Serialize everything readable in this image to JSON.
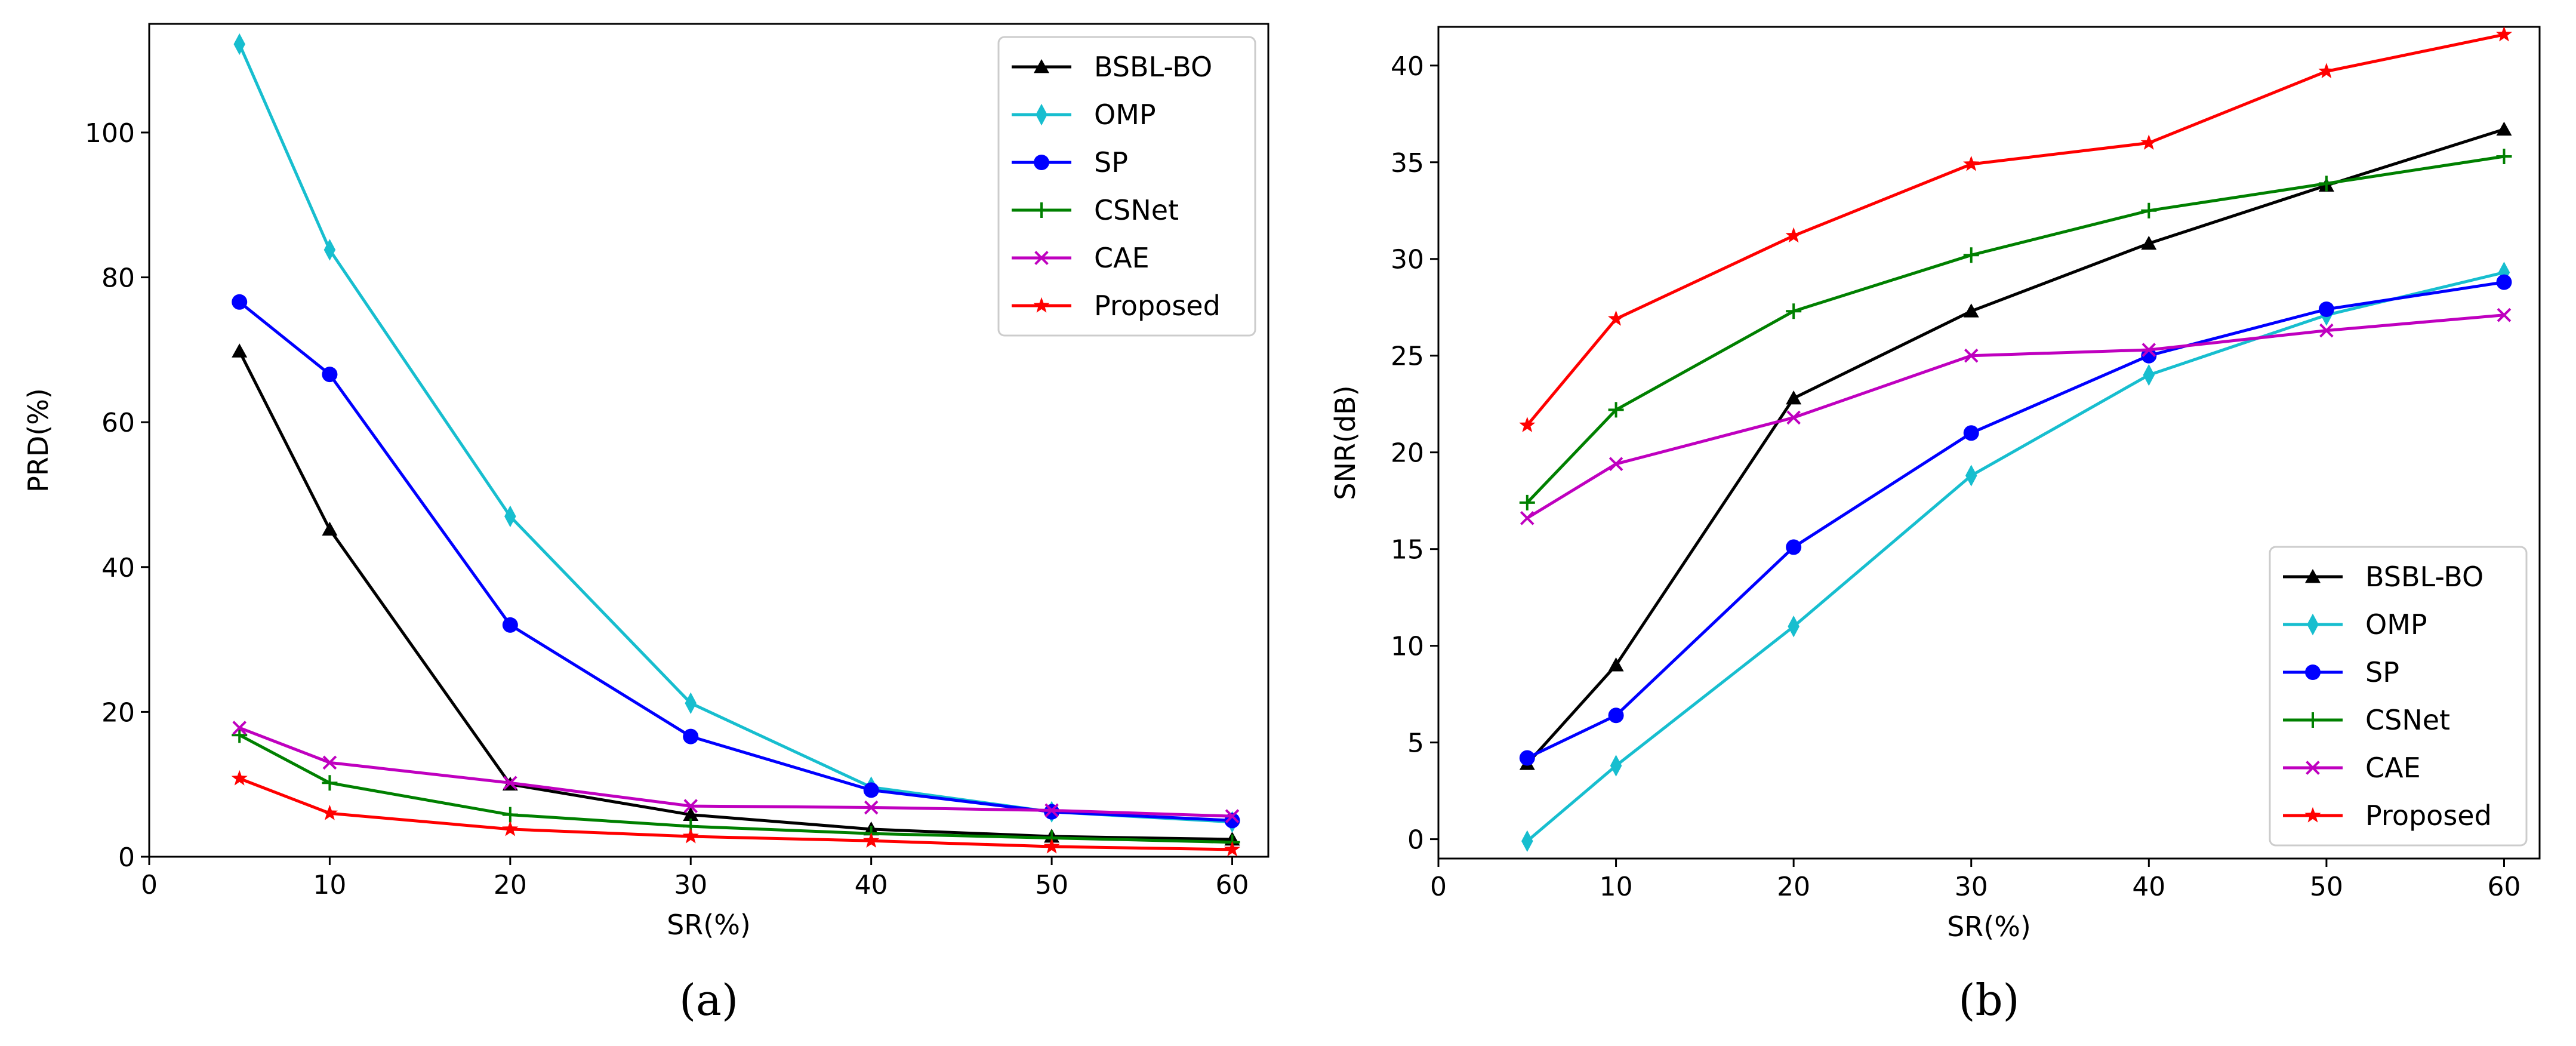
{
  "chart_data": [
    {
      "type": "line",
      "caption": "(a)",
      "xlabel": "SR(%)",
      "ylabel": "PRD(%)",
      "xlim": [
        0,
        62
      ],
      "ylim": [
        0,
        115
      ],
      "xticks": [
        0,
        10,
        20,
        30,
        40,
        50,
        60
      ],
      "yticks": [
        0,
        20,
        40,
        60,
        80,
        100
      ],
      "legend_position": "top-right",
      "grid": false,
      "x": [
        5,
        10,
        20,
        30,
        40,
        50,
        60
      ],
      "series": [
        {
          "name": "BSBL-BO",
          "color": "#000000",
          "marker": "triangle",
          "values": [
            69.8,
            45.2,
            10.0,
            5.8,
            3.8,
            2.8,
            2.4
          ]
        },
        {
          "name": "OMP",
          "color": "#17becf",
          "marker": "diamond",
          "values": [
            112.2,
            83.8,
            47.0,
            21.2,
            9.6,
            6.2,
            4.8
          ]
        },
        {
          "name": "SP",
          "color": "#0000ff",
          "marker": "circle",
          "values": [
            76.6,
            66.6,
            32.0,
            16.6,
            9.2,
            6.2,
            5.0
          ]
        },
        {
          "name": "CSNet",
          "color": "#008000",
          "marker": "plus",
          "values": [
            16.8,
            10.2,
            5.8,
            4.2,
            3.2,
            2.6,
            2.0
          ]
        },
        {
          "name": "CAE",
          "color": "#bf00bf",
          "marker": "x",
          "values": [
            17.8,
            13.0,
            10.2,
            7.0,
            6.8,
            6.4,
            5.6
          ]
        },
        {
          "name": "Proposed",
          "color": "#ff0000",
          "marker": "star",
          "values": [
            10.8,
            6.0,
            3.8,
            2.8,
            2.2,
            1.4,
            1.0
          ]
        }
      ]
    },
    {
      "type": "line",
      "caption": "(b)",
      "xlabel": "SR(%)",
      "ylabel": "SNR(dB)",
      "xlim": [
        0,
        62
      ],
      "ylim": [
        -1,
        42
      ],
      "xticks": [
        0,
        10,
        20,
        30,
        40,
        50,
        60
      ],
      "yticks": [
        0,
        5,
        10,
        15,
        20,
        25,
        30,
        35,
        40
      ],
      "legend_position": "bottom-right",
      "grid": false,
      "x": [
        5,
        10,
        20,
        30,
        40,
        50,
        60
      ],
      "series": [
        {
          "name": "BSBL-BO",
          "color": "#000000",
          "marker": "triangle",
          "values": [
            3.9,
            9.0,
            22.8,
            27.3,
            30.8,
            33.8,
            36.7
          ]
        },
        {
          "name": "OMP",
          "color": "#17becf",
          "marker": "diamond",
          "values": [
            -0.1,
            3.8,
            11.0,
            18.8,
            24.0,
            27.1,
            29.3
          ]
        },
        {
          "name": "SP",
          "color": "#0000ff",
          "marker": "circle",
          "values": [
            4.2,
            6.4,
            15.1,
            21.0,
            25.0,
            27.4,
            28.8
          ]
        },
        {
          "name": "CSNet",
          "color": "#008000",
          "marker": "plus",
          "values": [
            17.4,
            22.2,
            27.3,
            30.2,
            32.5,
            33.9,
            35.3
          ]
        },
        {
          "name": "CAE",
          "color": "#bf00bf",
          "marker": "x",
          "values": [
            16.6,
            19.4,
            21.8,
            25.0,
            25.3,
            26.3,
            27.1
          ]
        },
        {
          "name": "Proposed",
          "color": "#ff0000",
          "marker": "star",
          "values": [
            21.4,
            26.9,
            31.2,
            34.9,
            36.0,
            39.7,
            41.6
          ]
        }
      ]
    }
  ]
}
